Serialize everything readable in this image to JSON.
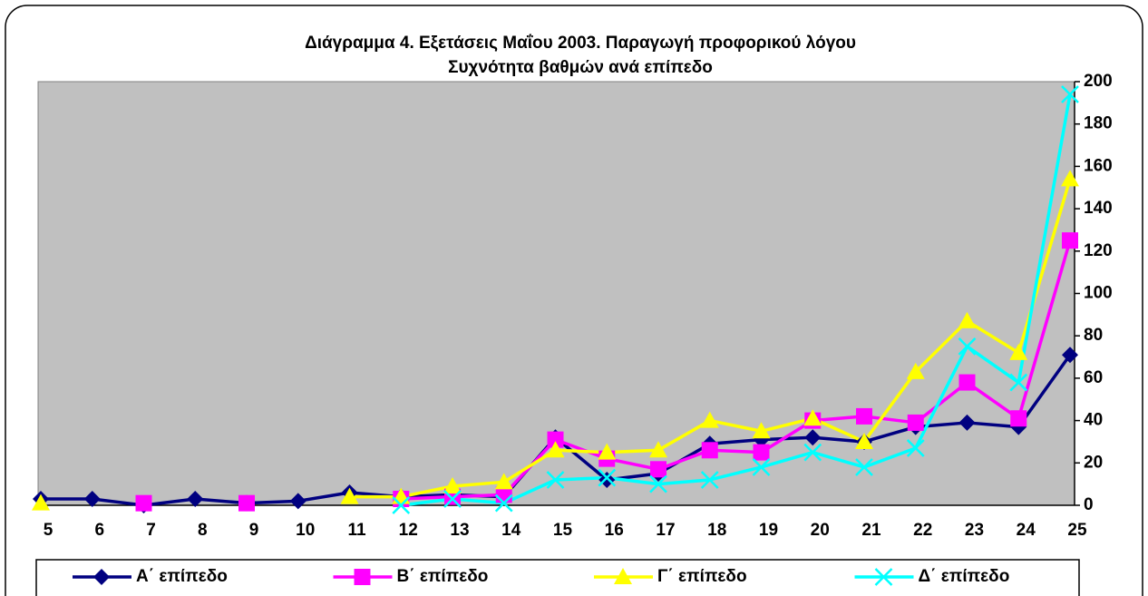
{
  "chart_data": {
    "type": "line",
    "title": "Διάγραμμα 4. Εξετάσεις Μαΐου 2003. Παραγωγή προφορικού λόγου",
    "subtitle": "Συχνότητα βαθμών ανά επίπεδο",
    "categories": [
      "5",
      "6",
      "7",
      "8",
      "9",
      "10",
      "11",
      "12",
      "13",
      "14",
      "15",
      "16",
      "17",
      "18",
      "19",
      "20",
      "21",
      "22",
      "23",
      "24",
      "25"
    ],
    "series": [
      {
        "name": "Α΄ επίπεδο",
        "color": "#000080",
        "marker": "diamond",
        "values": [
          3,
          3,
          0,
          3,
          1,
          2,
          6,
          4,
          5,
          4,
          32,
          12,
          15,
          29,
          31,
          32,
          30,
          37,
          39,
          37,
          71
        ]
      },
      {
        "name": "Β΄ επίπεδο",
        "color": "#ff00ff",
        "marker": "square",
        "values": [
          null,
          null,
          1,
          null,
          1,
          null,
          null,
          3,
          4,
          5,
          31,
          22,
          17,
          26,
          25,
          40,
          42,
          39,
          58,
          41,
          125
        ]
      },
      {
        "name": "Γ΄ επίπεδο",
        "color": "#ffff00",
        "marker": "triangle",
        "values": [
          1,
          null,
          null,
          null,
          null,
          null,
          4,
          4,
          9,
          11,
          26,
          25,
          26,
          40,
          35,
          41,
          30,
          63,
          87,
          72,
          154
        ]
      },
      {
        "name": "Δ΄ επίπεδο",
        "color": "#00ffff",
        "marker": "x",
        "values": [
          null,
          null,
          null,
          null,
          null,
          null,
          null,
          0,
          3,
          1,
          12,
          13,
          10,
          12,
          18,
          25,
          18,
          27,
          75,
          58,
          194
        ]
      }
    ],
    "ylim": [
      0,
      200
    ],
    "yticks": [
      0,
      20,
      40,
      60,
      80,
      100,
      120,
      140,
      160,
      180,
      200
    ],
    "y_axis_side": "right",
    "grid": false,
    "legend": "bottom",
    "plot_background": "#c0c0c0"
  }
}
